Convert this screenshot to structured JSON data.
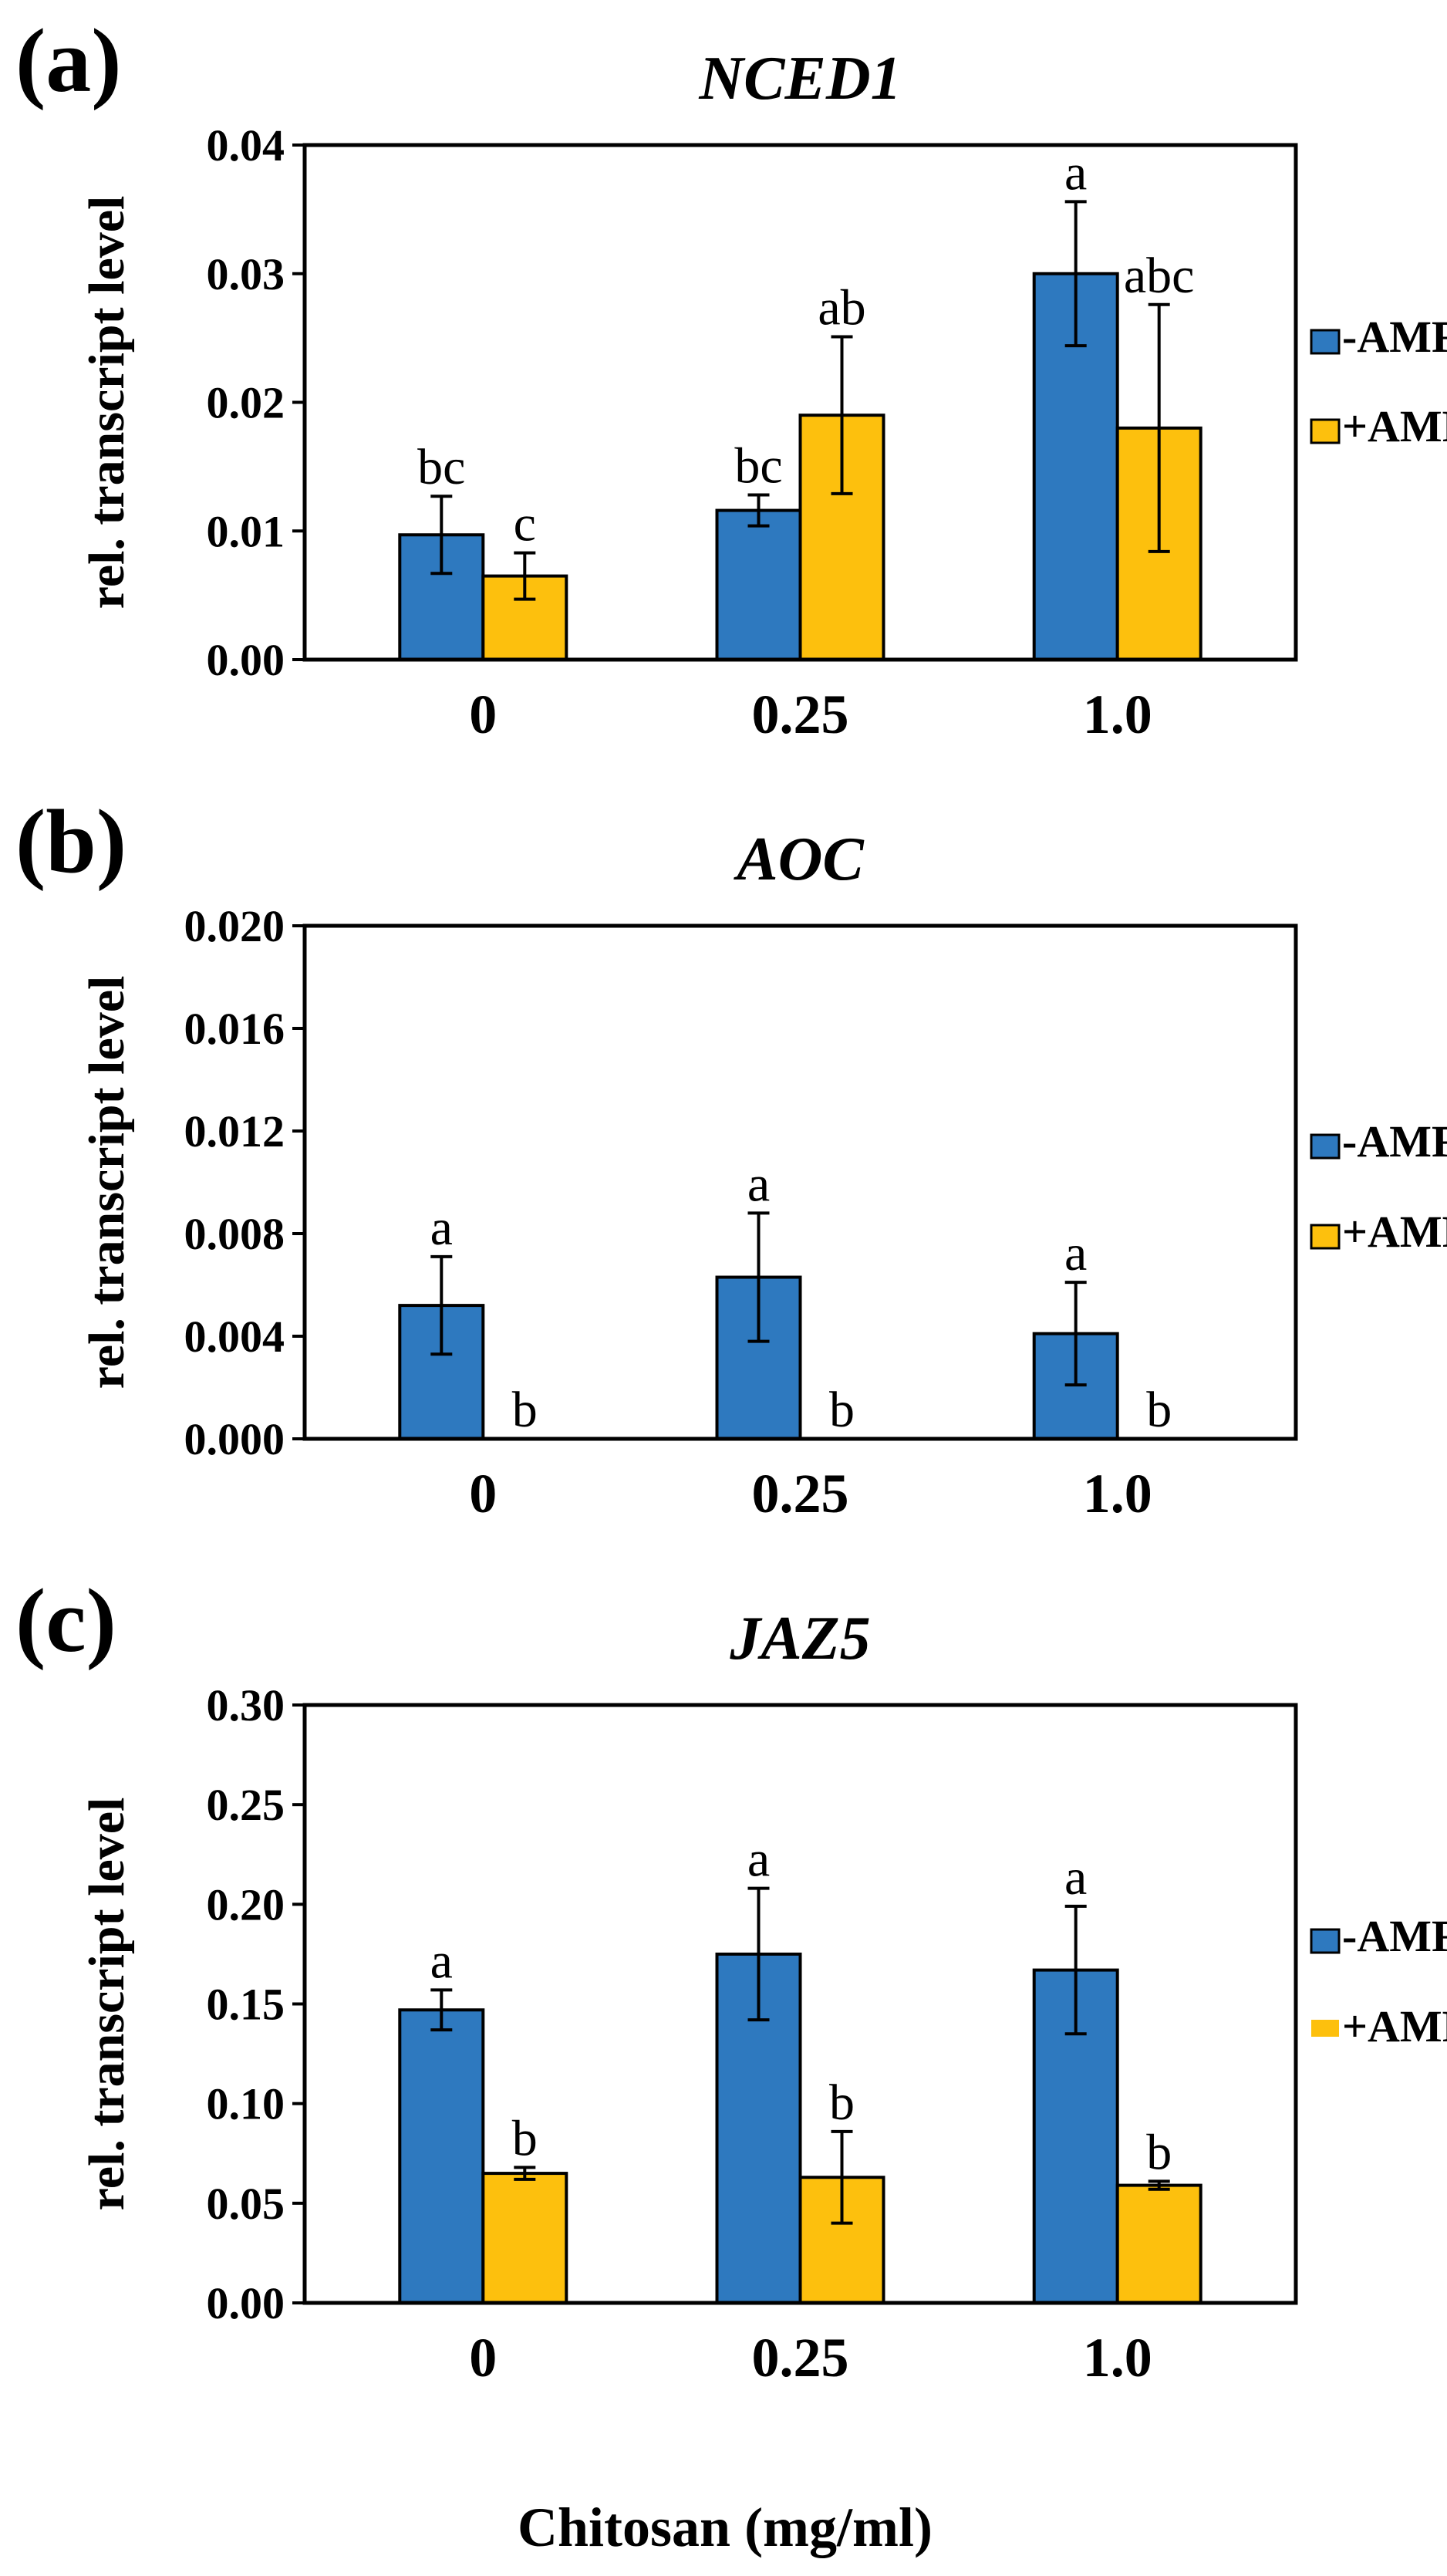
{
  "figure": {
    "xlabel": "Chitosan (mg/ml)"
  },
  "colors": {
    "minus_amf": "#2e79bf",
    "plus_amf": "#fdc00d",
    "stroke": "#000000"
  },
  "chart_data": [
    {
      "type": "bar",
      "panel_label": "(a)",
      "title": "NCED1",
      "ylabel": "rel. transcript level",
      "ylim": [
        0,
        0.04
      ],
      "yticks": [
        "0.00",
        "0.01",
        "0.02",
        "0.03",
        "0.04"
      ],
      "categories": [
        "0",
        "0.25",
        "1.0"
      ],
      "legend_position": "right",
      "series": [
        {
          "name": "-AMF",
          "values": [
            0.0097,
            0.0116,
            0.03
          ],
          "errors": [
            0.003,
            0.0012,
            0.0056
          ],
          "letters": [
            "bc",
            "bc",
            "a"
          ]
        },
        {
          "name": "+AMF",
          "values": [
            0.0065,
            0.019,
            0.018
          ],
          "errors": [
            0.0018,
            0.0061,
            0.0096
          ],
          "letters": [
            "c",
            "ab",
            "abc"
          ]
        }
      ]
    },
    {
      "type": "bar",
      "panel_label": "(b)",
      "title": "AOC",
      "ylabel": "rel. transcript level",
      "ylim": [
        0,
        0.02
      ],
      "yticks": [
        "0.000",
        "0.004",
        "0.008",
        "0.012",
        "0.016",
        "0.020"
      ],
      "categories": [
        "0",
        "0.25",
        "1.0"
      ],
      "legend_position": "right",
      "series": [
        {
          "name": "-AMF",
          "values": [
            0.0052,
            0.0063,
            0.0041
          ],
          "errors": [
            0.0019,
            0.0025,
            0.002
          ],
          "letters": [
            "a",
            "a",
            "a"
          ]
        },
        {
          "name": "+AMF",
          "values": [
            0,
            0,
            0
          ],
          "errors": [
            0,
            0,
            0
          ],
          "letters": [
            "b",
            "b",
            "b"
          ]
        }
      ]
    },
    {
      "type": "bar",
      "panel_label": "(c)",
      "title": "JAZ5",
      "ylabel": "rel. transcript level",
      "ylim": [
        0,
        0.3
      ],
      "yticks": [
        "0.00",
        "0.05",
        "0.10",
        "0.15",
        "0.20",
        "0.25",
        "0.30"
      ],
      "categories": [
        "0",
        "0.25",
        "1.0"
      ],
      "legend_position": "right",
      "series": [
        {
          "name": "-AMF",
          "values": [
            0.147,
            0.175,
            0.167
          ],
          "errors": [
            0.01,
            0.033,
            0.032
          ],
          "letters": [
            "a",
            "a",
            "a"
          ]
        },
        {
          "name": "+AMF",
          "values": [
            0.065,
            0.063,
            0.059
          ],
          "errors": [
            0.003,
            0.023,
            0.002
          ],
          "letters": [
            "b",
            "b",
            "b"
          ]
        }
      ]
    }
  ]
}
